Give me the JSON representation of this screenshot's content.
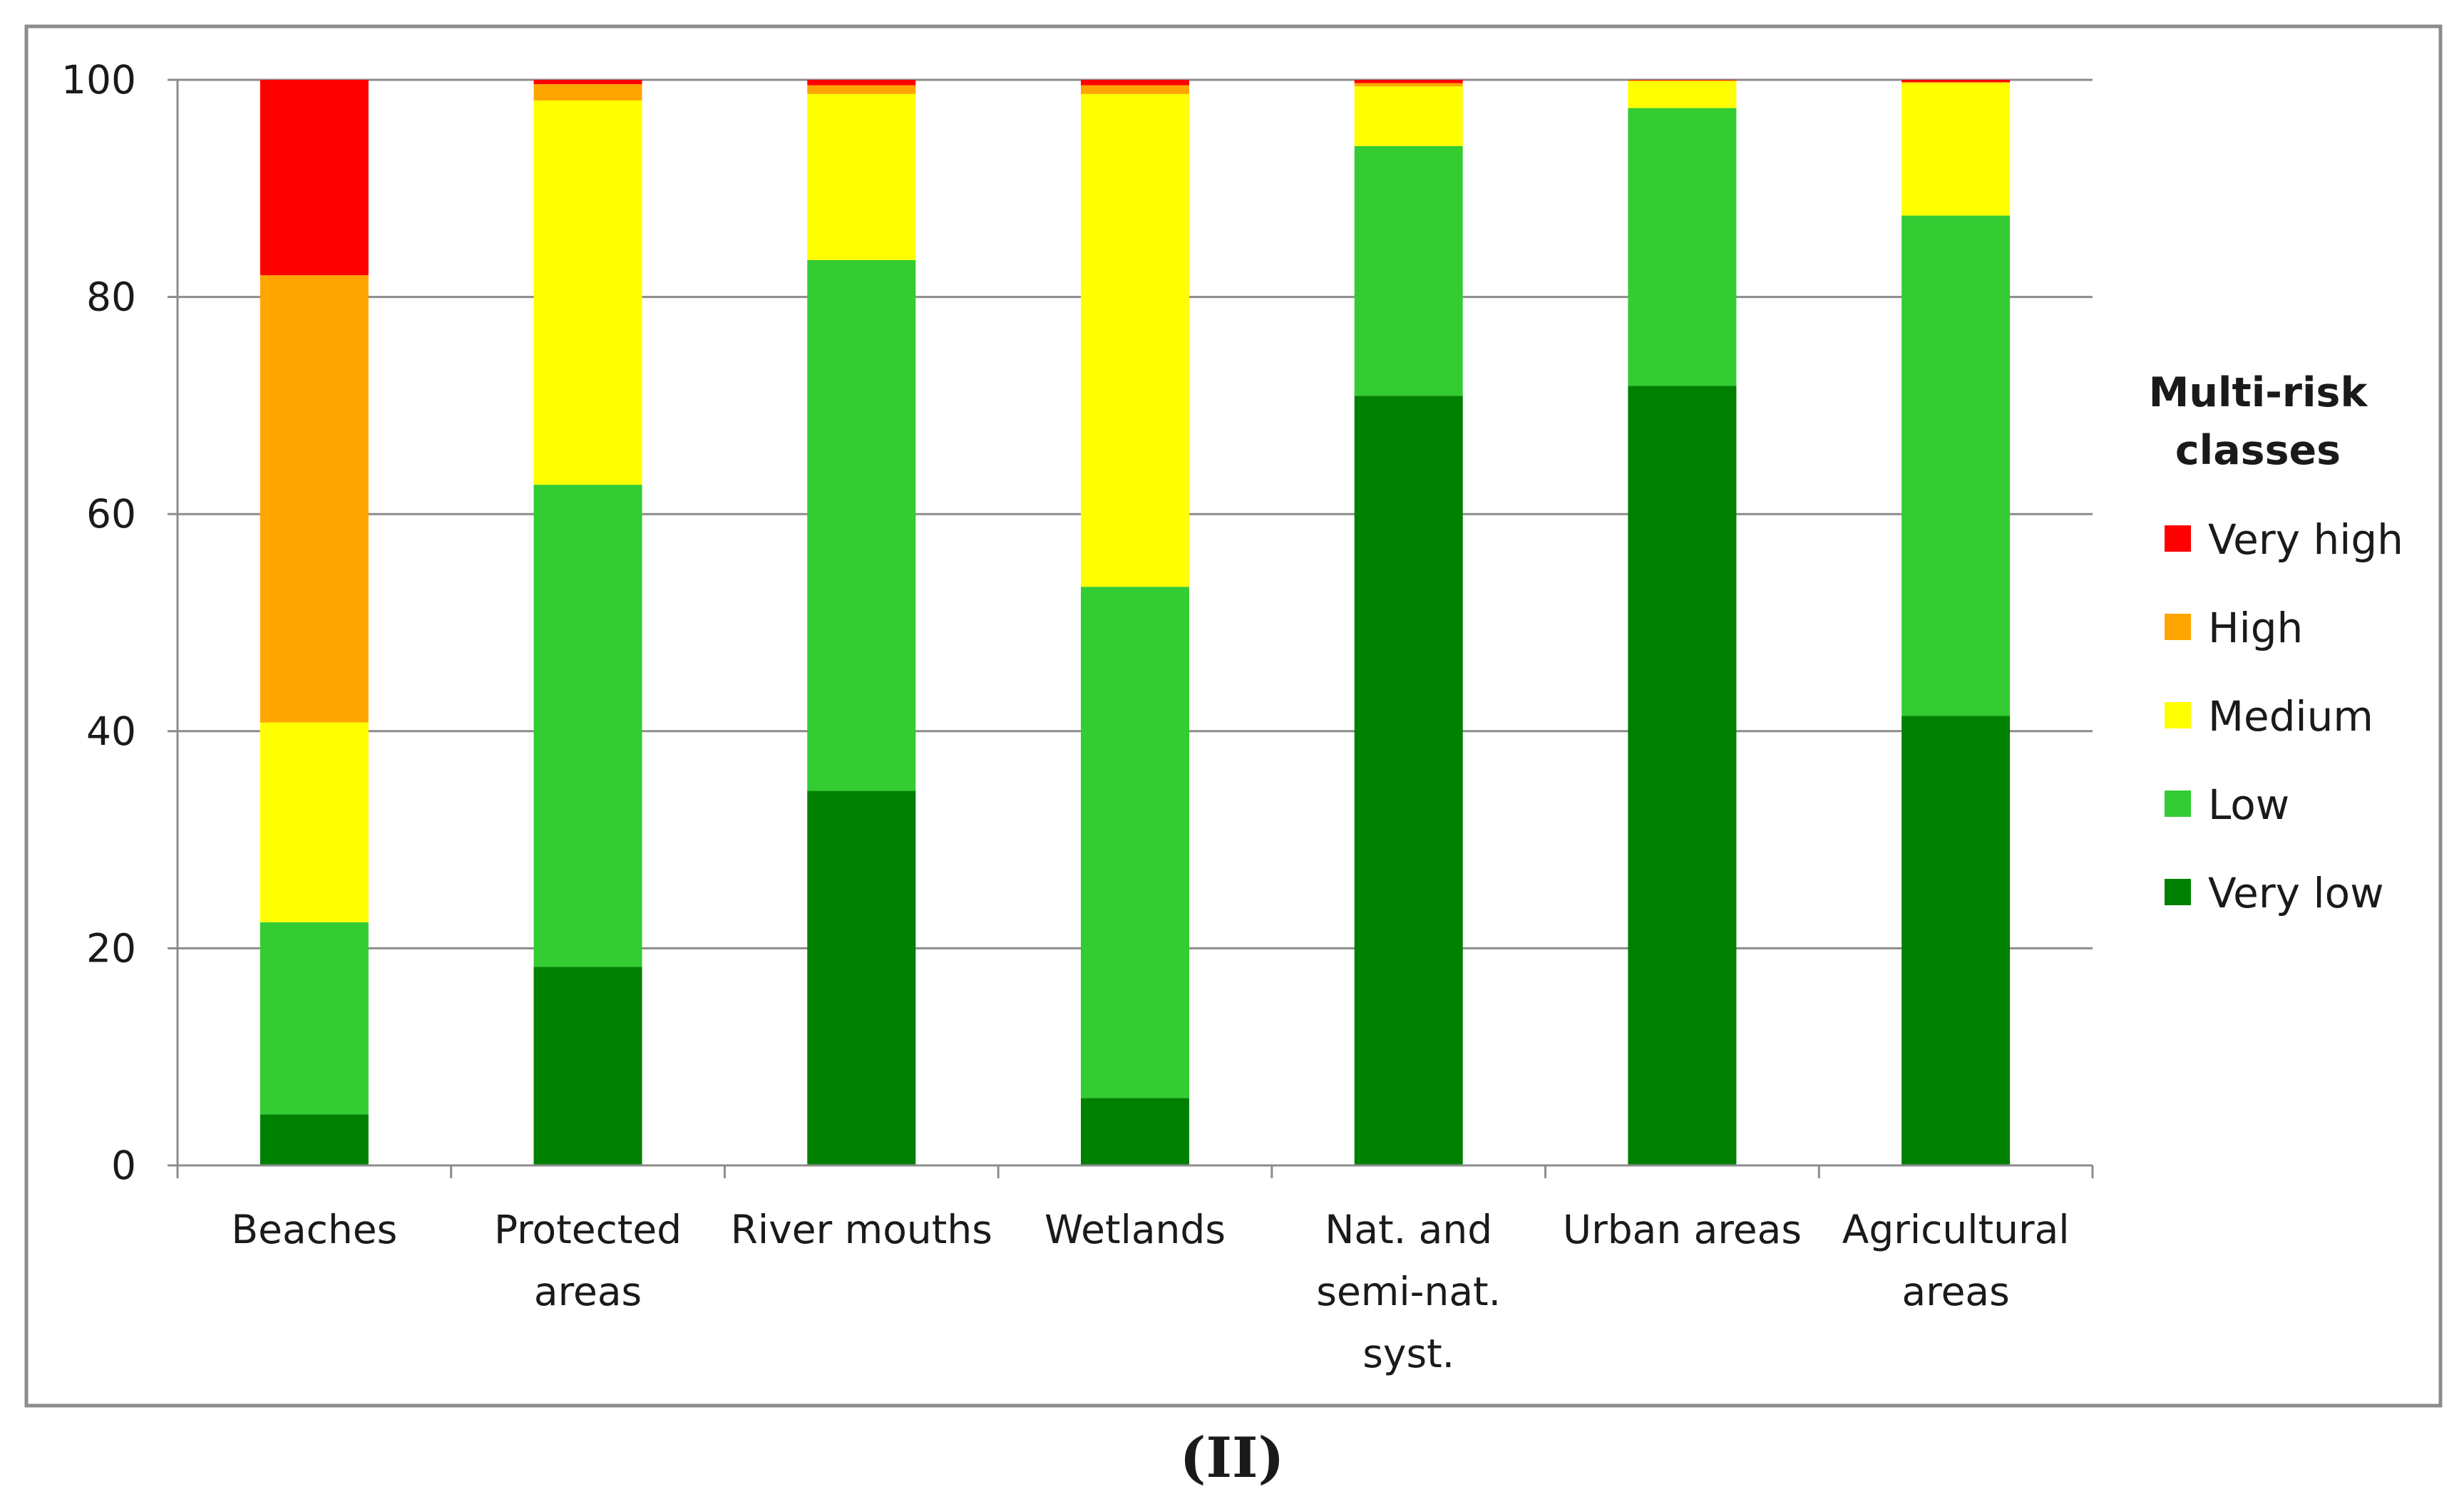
{
  "chart_data": {
    "type": "bar",
    "stacked": true,
    "categories": [
      [
        "Beaches"
      ],
      [
        "Protected",
        "areas"
      ],
      [
        "River mouths"
      ],
      [
        "Wetlands"
      ],
      [
        "Nat. and",
        "semi-nat.",
        "syst."
      ],
      [
        "Urban areas"
      ],
      [
        "Agricultural",
        "areas"
      ]
    ],
    "series": [
      {
        "name": "Very low",
        "color": "#008000",
        "values": [
          4.7,
          18.3,
          34.5,
          6.2,
          70.9,
          71.8,
          41.4
        ]
      },
      {
        "name": "Low",
        "color": "#33cc33",
        "values": [
          17.7,
          44.4,
          48.9,
          47.1,
          23.0,
          25.6,
          46.1
        ]
      },
      {
        "name": "Medium",
        "color": "#ffff00",
        "values": [
          18.4,
          35.4,
          15.3,
          45.4,
          5.5,
          2.5,
          12.2
        ]
      },
      {
        "name": "High",
        "color": "#ffa500",
        "values": [
          41.2,
          1.5,
          0.8,
          0.8,
          0.3,
          0.05,
          0.1
        ]
      },
      {
        "name": "Very high",
        "color": "#ff0000",
        "values": [
          18.0,
          0.4,
          0.5,
          0.5,
          0.3,
          0.05,
          0.2
        ]
      }
    ],
    "y_ticks": [
      0,
      20,
      40,
      60,
      80,
      100
    ],
    "ylim": [
      0,
      100
    ],
    "grid": true,
    "title": "",
    "xlabel": "",
    "ylabel": "",
    "legend": {
      "title": [
        "Multi-risk",
        "classes"
      ],
      "placement": "right",
      "order": [
        "Very high",
        "High",
        "Medium",
        "Low",
        "Very low"
      ]
    }
  },
  "caption": "(II)"
}
